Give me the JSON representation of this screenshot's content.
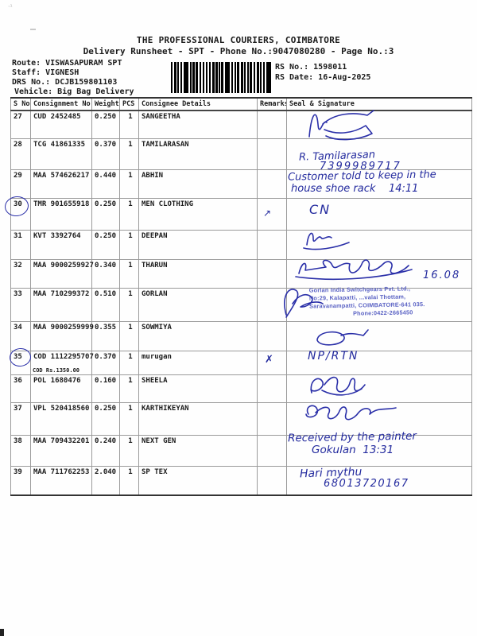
{
  "header": {
    "title": "THE PROFESSIONAL COURIERS, COIMBATORE",
    "subtitle": "Delivery Runsheet - SPT - Phone No.:9047080280 - Page No.:3",
    "route": "Route: VISWASAPURAM SPT",
    "staff": "Staff: VIGNESH",
    "drs_no": "DRS No.: DCJB159801103",
    "vehicle": "Vehicle: Big Bag Delivery",
    "rs_no": "RS No.: 1598011",
    "rs_date": "RS Date: 16-Aug-2025",
    "barcode": "barcode"
  },
  "table": {
    "columns": [
      "S No",
      "Consignment No",
      "Weight",
      "PCS",
      "Consignee Details",
      "Remarks",
      "Seal & Signature"
    ],
    "rows": [
      {
        "sno": "27",
        "consignment": "CUD 2452485",
        "weight": "0.250",
        "pcs": "1",
        "consignee": "SANGEETHA",
        "remark": "",
        "cod_note": ""
      },
      {
        "sno": "28",
        "consignment": "TCG 41861335",
        "weight": "0.370",
        "pcs": "1",
        "consignee": "TAMILARASAN",
        "remark": "",
        "cod_note": ""
      },
      {
        "sno": "29",
        "consignment": "MAA 574626217",
        "weight": "0.440",
        "pcs": "1",
        "consignee": "ABHIN",
        "remark": "",
        "cod_note": ""
      },
      {
        "sno": "30",
        "consignment": "TMR 901655918",
        "weight": "0.250",
        "pcs": "1",
        "consignee": "MEN CLOTHING",
        "remark": "↗",
        "cod_note": ""
      },
      {
        "sno": "31",
        "consignment": "KVT 3392764",
        "weight": "0.250",
        "pcs": "1",
        "consignee": "DEEPAN",
        "remark": "",
        "cod_note": ""
      },
      {
        "sno": "32",
        "consignment": "MAA 9000259927",
        "weight": "0.340",
        "pcs": "1",
        "consignee": "THARUN",
        "remark": "",
        "cod_note": ""
      },
      {
        "sno": "33",
        "consignment": "MAA 710299372",
        "weight": "0.510",
        "pcs": "1",
        "consignee": "GORLAN",
        "remark": "",
        "cod_note": ""
      },
      {
        "sno": "34",
        "consignment": "MAA 9000259999",
        "weight": "0.355",
        "pcs": "1",
        "consignee": "SOWMIYA",
        "remark": "",
        "cod_note": ""
      },
      {
        "sno": "35",
        "consignment": "COD 1112295707",
        "weight": "0.370",
        "pcs": "1",
        "consignee": "murugan",
        "remark": "✗",
        "cod_note": "COD Rs.1350.00"
      },
      {
        "sno": "36",
        "consignment": "POL 1680476",
        "weight": "0.160",
        "pcs": "1",
        "consignee": "SHEELA",
        "remark": "",
        "cod_note": ""
      },
      {
        "sno": "37",
        "consignment": "VPL 520418560",
        "weight": "0.250",
        "pcs": "1",
        "consignee": "KARTHIKEYAN",
        "remark": "",
        "cod_note": ""
      },
      {
        "sno": "38",
        "consignment": "MAA 709432201",
        "weight": "0.240",
        "pcs": "1",
        "consignee": "NEXT GEN",
        "remark": "",
        "cod_note": ""
      },
      {
        "sno": "39",
        "consignment": "MAA 711762253",
        "weight": "2.040",
        "pcs": "1",
        "consignee": "SP TEX",
        "remark": "",
        "cod_note": ""
      }
    ]
  },
  "handwriting": {
    "r28_name": "R. Tamilarasan",
    "r28_phone": "7399989717",
    "r29_note1": "Customer told to keep in the",
    "r29_note2": "house shoe rack    14:11",
    "r30_cn": "CN",
    "r32_date": "16.08",
    "r35_status": "NP/RTN",
    "r38_note1": "Received by the painter",
    "r38_note2": "Gokulan  13:31",
    "r39_name": "Hari mythu",
    "r39_phone": "68013720167"
  },
  "stamp": {
    "line1": "Gorlan India Switchgears Pvt. Ltd.,",
    "line2": "No:29, Kalapatti, ...valai Thottam,",
    "line3": "Saravanampatti, COIMBATORE-641 035.",
    "line4": "Phone:0422-2665450"
  }
}
